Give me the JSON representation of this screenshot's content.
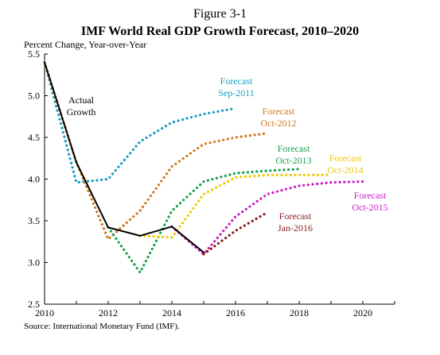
{
  "chart_data": {
    "type": "line",
    "figure_label": "Figure 3-1",
    "title": "IMF World Real GDP Growth Forecast, 2010–2020",
    "ylabel": "Percent Change, Year-over-Year",
    "source": "Source: International Monetary Fund (IMF).",
    "xlim": [
      2010,
      2021
    ],
    "ylim": [
      2.5,
      5.5
    ],
    "x_ticks": [
      "2010",
      "2012",
      "2014",
      "2016",
      "2018",
      "2020"
    ],
    "y_ticks": [
      "2.5",
      "3.0",
      "3.5",
      "4.0",
      "4.5",
      "5.0",
      "5.5"
    ],
    "grid": false,
    "series": [
      {
        "name": "Actual Growth",
        "label_lines": [
          "Actual",
          "Growth"
        ],
        "color": "#000000",
        "style": "solid",
        "points": [
          [
            2010,
            5.4
          ],
          [
            2011,
            4.2
          ],
          [
            2012,
            3.42
          ],
          [
            2013,
            3.32
          ],
          [
            2014,
            3.43
          ],
          [
            2015,
            3.12
          ]
        ]
      },
      {
        "name": "Forecast Sep-2011",
        "label_lines": [
          "Forecast",
          "Sep-2011"
        ],
        "color": "#1a9dc0",
        "style": "dotted",
        "points": [
          [
            2010,
            5.4
          ],
          [
            2011,
            3.96
          ],
          [
            2012,
            4.0
          ],
          [
            2013,
            4.45
          ],
          [
            2014,
            4.68
          ],
          [
            2015,
            4.78
          ],
          [
            2016,
            4.85
          ]
        ]
      },
      {
        "name": "Forecast Oct-2012",
        "label_lines": [
          "Forecast",
          "Oct-2012"
        ],
        "color": "#d2781e",
        "style": "dotted",
        "points": [
          [
            2010,
            5.4
          ],
          [
            2011,
            4.2
          ],
          [
            2012,
            3.28
          ],
          [
            2013,
            3.62
          ],
          [
            2014,
            4.15
          ],
          [
            2015,
            4.42
          ],
          [
            2016,
            4.5
          ],
          [
            2017,
            4.55
          ]
        ]
      },
      {
        "name": "Forecast Oct-2013",
        "label_lines": [
          "Forecast",
          "Oct-2013"
        ],
        "color": "#18a050",
        "style": "dotted",
        "points": [
          [
            2012,
            3.42
          ],
          [
            2013,
            2.88
          ],
          [
            2014,
            3.62
          ],
          [
            2015,
            3.97
          ],
          [
            2016,
            4.07
          ],
          [
            2017,
            4.1
          ],
          [
            2018,
            4.12
          ]
        ]
      },
      {
        "name": "Forecast Oct-2014",
        "label_lines": [
          "Forecast",
          "Oct-2014"
        ],
        "color": "#f0c800",
        "style": "dotted",
        "points": [
          [
            2013,
            3.32
          ],
          [
            2014,
            3.3
          ],
          [
            2015,
            3.82
          ],
          [
            2016,
            4.02
          ],
          [
            2017,
            4.05
          ],
          [
            2018,
            4.05
          ],
          [
            2019,
            4.05
          ]
        ]
      },
      {
        "name": "Forecast Oct-2015",
        "label_lines": [
          "Forecast",
          "Oct-2015"
        ],
        "color": "#cc1ec4",
        "style": "dotted",
        "points": [
          [
            2014,
            3.43
          ],
          [
            2015,
            3.1
          ],
          [
            2016,
            3.55
          ],
          [
            2017,
            3.82
          ],
          [
            2018,
            3.92
          ],
          [
            2019,
            3.96
          ],
          [
            2020,
            3.97
          ]
        ]
      },
      {
        "name": "Forecast Jan-2016",
        "label_lines": [
          "Forecast",
          "Jan-2016"
        ],
        "color": "#8b1a1a",
        "style": "dotted",
        "points": [
          [
            2015,
            3.1
          ],
          [
            2016,
            3.38
          ],
          [
            2017,
            3.6
          ]
        ]
      }
    ]
  }
}
